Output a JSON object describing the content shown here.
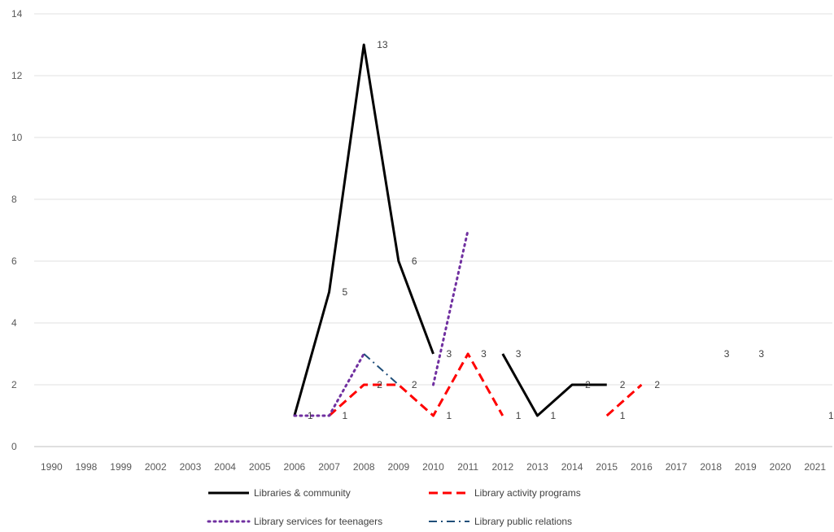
{
  "chart_data": {
    "type": "line",
    "categories": [
      "1990",
      "1998",
      "1999",
      "2002",
      "2003",
      "2004",
      "2005",
      "2006",
      "2007",
      "2008",
      "2009",
      "2010",
      "2011",
      "2012",
      "2013",
      "2014",
      "2015",
      "2016",
      "2017",
      "2018",
      "2019",
      "2020",
      "2021"
    ],
    "ylim": [
      0,
      14
    ],
    "yticks": [
      0,
      2,
      4,
      6,
      8,
      10,
      12,
      14
    ],
    "grid": true,
    "legend_position": "bottom",
    "series": [
      {
        "name": "Libraries & community",
        "color": "#000000",
        "dash": "solid",
        "values": [
          null,
          null,
          null,
          null,
          null,
          null,
          null,
          1,
          5,
          13,
          6,
          3,
          null,
          3,
          1,
          2,
          2,
          null,
          null,
          null,
          null,
          null,
          null
        ]
      },
      {
        "name": "Library activity programs",
        "color": "#ff0000",
        "dash": "dashed",
        "values": [
          null,
          null,
          null,
          null,
          null,
          null,
          null,
          null,
          1,
          2,
          2,
          1,
          3,
          1,
          null,
          null,
          1,
          2,
          null,
          null,
          null,
          null,
          null
        ]
      },
      {
        "name": "Library services for teenagers",
        "color": "#7030a0",
        "dash": "dotted",
        "values": [
          null,
          null,
          null,
          null,
          null,
          null,
          null,
          1,
          1,
          3,
          null,
          2,
          7,
          null,
          null,
          null,
          null,
          null,
          null,
          null,
          null,
          null,
          null
        ]
      },
      {
        "name": "Library public relations",
        "color": "#1f4e79",
        "dash": "dash-dot",
        "values": [
          null,
          null,
          null,
          null,
          null,
          null,
          null,
          null,
          null,
          3,
          2,
          null,
          null,
          null,
          null,
          null,
          null,
          null,
          null,
          null,
          null,
          null,
          null
        ]
      }
    ],
    "data_labels": [
      {
        "x": "2006",
        "value": "1"
      },
      {
        "x": "2007",
        "value": "5"
      },
      {
        "x": "2007",
        "value": "1"
      },
      {
        "x": "2008",
        "value": "13"
      },
      {
        "x": "2008",
        "value": "2"
      },
      {
        "x": "2009",
        "value": "6"
      },
      {
        "x": "2009",
        "value": "2"
      },
      {
        "x": "2010",
        "value": "3"
      },
      {
        "x": "2010",
        "value": "1"
      },
      {
        "x": "2011",
        "value": "3"
      },
      {
        "x": "2012",
        "value": "3"
      },
      {
        "x": "2012",
        "value": "1"
      },
      {
        "x": "2013",
        "value": "1"
      },
      {
        "x": "2014",
        "value": "2"
      },
      {
        "x": "2015",
        "value": "2"
      },
      {
        "x": "2015",
        "value": "1"
      },
      {
        "x": "2016",
        "value": "2"
      },
      {
        "x": "2018",
        "value": "3"
      },
      {
        "x": "2019",
        "value": "3"
      },
      {
        "x": "2021",
        "value": "1"
      }
    ]
  }
}
